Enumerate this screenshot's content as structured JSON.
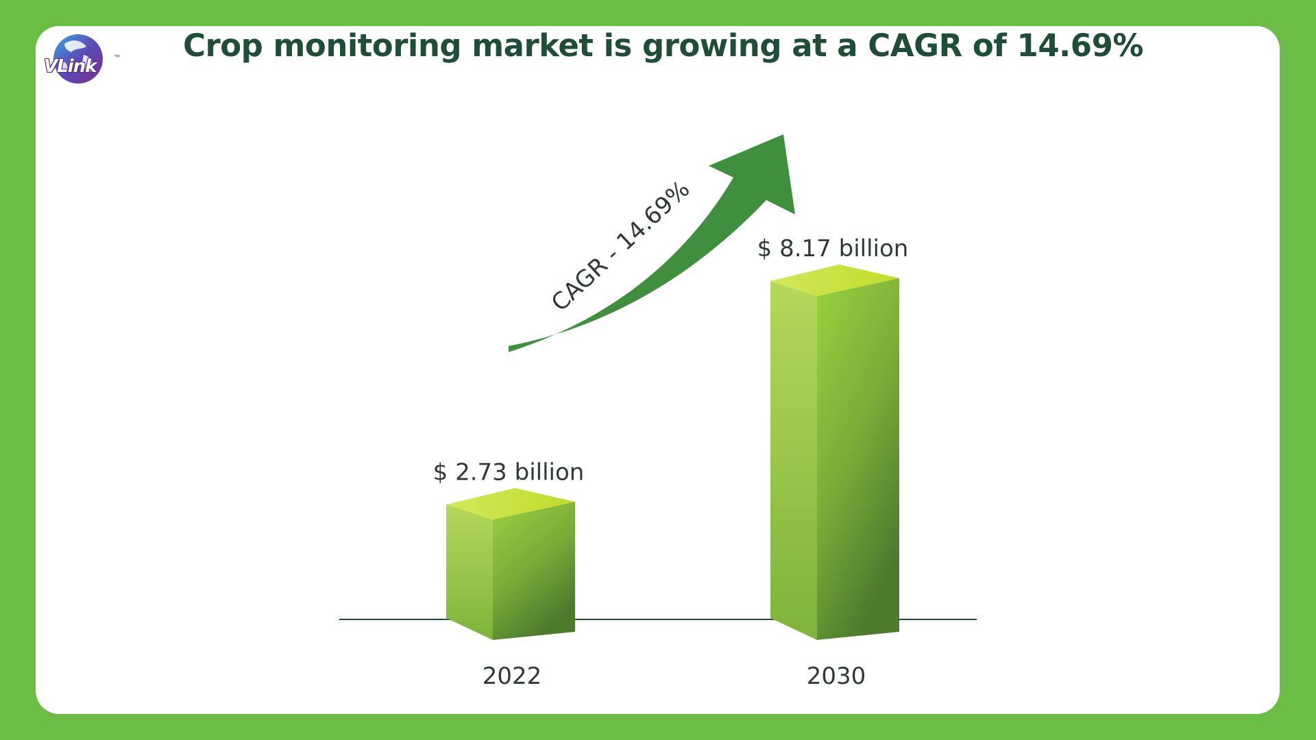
{
  "title": "Crop monitoring market is growing at a CAGR of 14.69%",
  "logo": {
    "text": "VLink",
    "tm": "™"
  },
  "chart_data": {
    "type": "bar",
    "title": "Crop monitoring market is growing at a CAGR of 14.69%",
    "categories": [
      "2022",
      "2030"
    ],
    "values": [
      2.73,
      8.17
    ],
    "value_labels": [
      "$ 2.73 billion",
      "$ 8.17 billion"
    ],
    "annotation": "CAGR - 14.69%",
    "unit": "billion USD",
    "xlabel": "",
    "ylabel": "",
    "grid": false,
    "legend": "none",
    "colors": {
      "bar_light": "#c6e12f",
      "bar_mid": "#8cc63f",
      "bar_dark": "#4e7a2e",
      "arrow": "#3f8f3f",
      "axis": "#1f4d37"
    }
  }
}
